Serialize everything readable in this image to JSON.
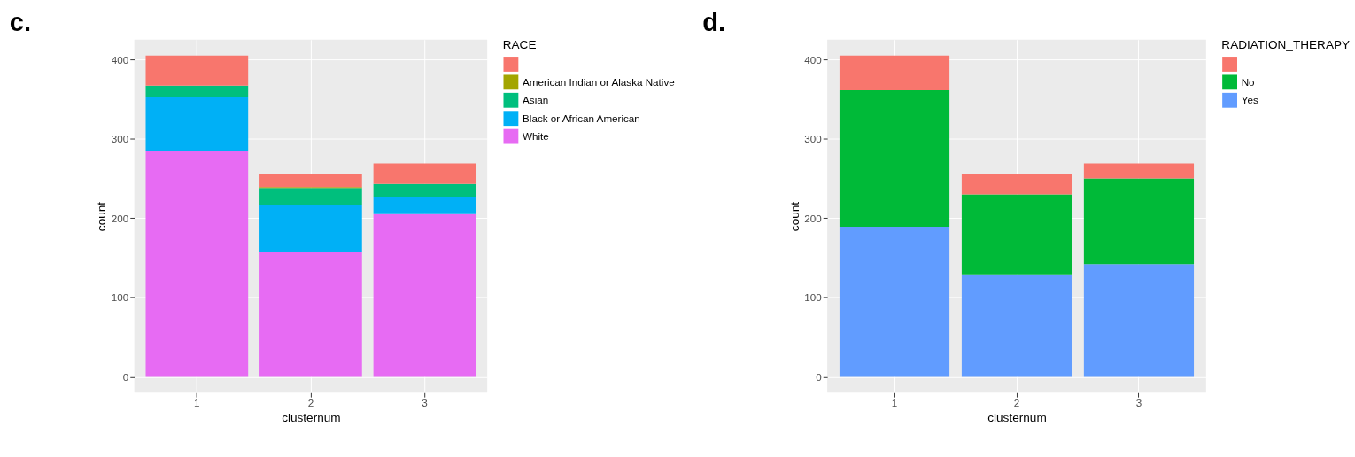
{
  "chart_data": [
    {
      "type": "bar",
      "title": "c.",
      "xlabel": "clusternum",
      "ylabel": "count",
      "legend_title": "RACE",
      "categories": [
        "1",
        "2",
        "3"
      ],
      "stacked": true,
      "ylim": [
        -20,
        425
      ],
      "yticks": [
        0,
        100,
        200,
        300,
        400
      ],
      "grid": true,
      "legend": "right",
      "series": [
        {
          "name": "White",
          "color": "#e76bf3",
          "values": [
            284,
            158,
            205
          ]
        },
        {
          "name": "Black or African American",
          "color": "#00b0f6",
          "values": [
            69,
            58,
            22
          ]
        },
        {
          "name": "Asian",
          "color": "#00bf7d",
          "values": [
            14,
            22,
            16
          ]
        },
        {
          "name": "American Indian or Alaska Native",
          "color": "#a3a500",
          "values": [
            0,
            1,
            0
          ]
        },
        {
          "color": "#f8766d",
          "values": [
            38,
            16,
            26
          ]
        }
      ]
    },
    {
      "type": "bar",
      "title": "d.",
      "xlabel": "clusternum",
      "ylabel": "count",
      "legend_title": "RADIATION_THERAPY",
      "categories": [
        "1",
        "2",
        "3"
      ],
      "stacked": true,
      "ylim": [
        -20,
        425
      ],
      "yticks": [
        0,
        100,
        200,
        300,
        400
      ],
      "grid": true,
      "legend": "right",
      "series": [
        {
          "name": "Yes",
          "color": "#619cff",
          "values": [
            189,
            129,
            142
          ]
        },
        {
          "name": "No",
          "color": "#00ba38",
          "values": [
            172,
            101,
            108
          ]
        },
        {
          "color": "#f8766d",
          "values": [
            44,
            25,
            19
          ]
        }
      ]
    }
  ]
}
